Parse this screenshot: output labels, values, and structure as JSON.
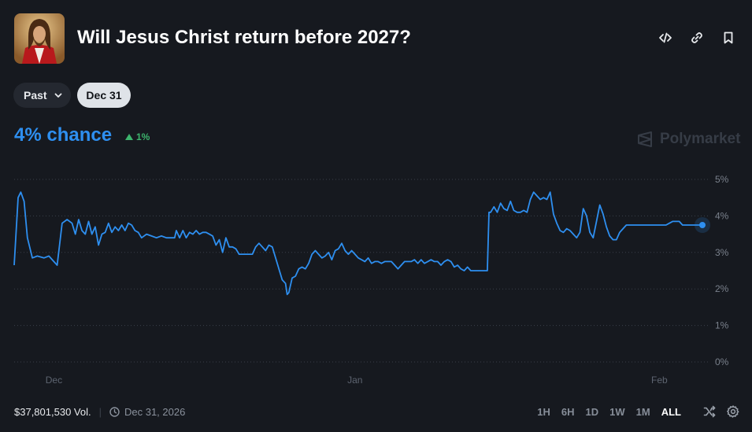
{
  "header": {
    "title": "Will Jesus Christ return before 2027?",
    "avatar_icon": "jesus-portrait-image"
  },
  "toolbar": {
    "icons": [
      "embed-code-icon",
      "link-icon",
      "bookmark-icon"
    ]
  },
  "filters": {
    "past_label": "Past",
    "date_label": "Dec 31"
  },
  "summary": {
    "chance": "4% chance",
    "delta": "1%",
    "delta_direction": "up"
  },
  "brand": {
    "name": "Polymarket"
  },
  "chart_data": {
    "type": "line",
    "title": "",
    "xlabel": "",
    "ylabel": "",
    "ylim": [
      0,
      5
    ],
    "y_ticks": [
      "5%",
      "4%",
      "3%",
      "2%",
      "1%",
      "0%"
    ],
    "x_ticks": [
      "Dec",
      "Jan",
      "Feb"
    ],
    "grid": true,
    "series": [
      {
        "color": "#2e8ff0",
        "points": [
          [
            0,
            2.65
          ],
          [
            1.2,
            4.5
          ],
          [
            2,
            4.65
          ],
          [
            3,
            4.4
          ],
          [
            4,
            3.4
          ],
          [
            5.5,
            2.85
          ],
          [
            7,
            2.9
          ],
          [
            9,
            2.85
          ],
          [
            10.5,
            2.9
          ],
          [
            12,
            2.75
          ],
          [
            13,
            2.65
          ],
          [
            14.5,
            3.8
          ],
          [
            16,
            3.9
          ],
          [
            17.5,
            3.8
          ],
          [
            18.5,
            3.5
          ],
          [
            19.5,
            3.9
          ],
          [
            20.5,
            3.6
          ],
          [
            21.5,
            3.5
          ],
          [
            22.5,
            3.85
          ],
          [
            23.5,
            3.5
          ],
          [
            24.5,
            3.7
          ],
          [
            25.5,
            3.2
          ],
          [
            26.5,
            3.5
          ],
          [
            27.5,
            3.55
          ],
          [
            28.5,
            3.8
          ],
          [
            29.5,
            3.55
          ],
          [
            30.5,
            3.7
          ],
          [
            31.5,
            3.6
          ],
          [
            32.5,
            3.75
          ],
          [
            33.5,
            3.6
          ],
          [
            34.5,
            3.8
          ],
          [
            35.5,
            3.75
          ],
          [
            36.5,
            3.6
          ],
          [
            37.5,
            3.55
          ],
          [
            38.5,
            3.4
          ],
          [
            40,
            3.5
          ],
          [
            41.5,
            3.45
          ],
          [
            43,
            3.4
          ],
          [
            44.5,
            3.45
          ],
          [
            46,
            3.4
          ],
          [
            47.5,
            3.4
          ],
          [
            48.5,
            3.4
          ],
          [
            49,
            3.6
          ],
          [
            50,
            3.4
          ],
          [
            51,
            3.6
          ],
          [
            52,
            3.4
          ],
          [
            53,
            3.55
          ],
          [
            54,
            3.5
          ],
          [
            55,
            3.6
          ],
          [
            56,
            3.5
          ],
          [
            57,
            3.55
          ],
          [
            58,
            3.55
          ],
          [
            59,
            3.5
          ],
          [
            60,
            3.45
          ],
          [
            61,
            3.2
          ],
          [
            62,
            3.35
          ],
          [
            63,
            3.0
          ],
          [
            64,
            3.4
          ],
          [
            65,
            3.15
          ],
          [
            66,
            3.15
          ],
          [
            67,
            3.1
          ],
          [
            68,
            2.95
          ],
          [
            69,
            2.95
          ],
          [
            70.5,
            2.95
          ],
          [
            72,
            2.95
          ],
          [
            73,
            3.15
          ],
          [
            74,
            3.25
          ],
          [
            75,
            3.15
          ],
          [
            76,
            3.05
          ],
          [
            77,
            3.2
          ],
          [
            78,
            3.15
          ],
          [
            79,
            2.85
          ],
          [
            80,
            2.55
          ],
          [
            81,
            2.25
          ],
          [
            82,
            2.15
          ],
          [
            82.5,
            1.85
          ],
          [
            83,
            1.9
          ],
          [
            84,
            2.3
          ],
          [
            85,
            2.35
          ],
          [
            86,
            2.55
          ],
          [
            87,
            2.6
          ],
          [
            88,
            2.55
          ],
          [
            89,
            2.7
          ],
          [
            90,
            2.95
          ],
          [
            91,
            3.05
          ],
          [
            92,
            2.95
          ],
          [
            93,
            2.85
          ],
          [
            94,
            2.9
          ],
          [
            95,
            3.0
          ],
          [
            96,
            2.8
          ],
          [
            97,
            3.05
          ],
          [
            98,
            3.1
          ],
          [
            99,
            3.25
          ],
          [
            100,
            3.05
          ],
          [
            101,
            2.95
          ],
          [
            102,
            3.05
          ],
          [
            103,
            2.95
          ],
          [
            104,
            2.85
          ],
          [
            105,
            2.8
          ],
          [
            106,
            2.75
          ],
          [
            107,
            2.85
          ],
          [
            108,
            2.7
          ],
          [
            109,
            2.75
          ],
          [
            110,
            2.75
          ],
          [
            111,
            2.7
          ],
          [
            112,
            2.75
          ],
          [
            113,
            2.75
          ],
          [
            114,
            2.75
          ],
          [
            115,
            2.65
          ],
          [
            116,
            2.55
          ],
          [
            117,
            2.65
          ],
          [
            118,
            2.75
          ],
          [
            119,
            2.75
          ],
          [
            120,
            2.75
          ],
          [
            121,
            2.8
          ],
          [
            122,
            2.7
          ],
          [
            123,
            2.8
          ],
          [
            124,
            2.7
          ],
          [
            125,
            2.75
          ],
          [
            126,
            2.8
          ],
          [
            127,
            2.75
          ],
          [
            128,
            2.75
          ],
          [
            129,
            2.65
          ],
          [
            130,
            2.75
          ],
          [
            131,
            2.8
          ],
          [
            132,
            2.75
          ],
          [
            133,
            2.6
          ],
          [
            134,
            2.65
          ],
          [
            135,
            2.55
          ],
          [
            136,
            2.5
          ],
          [
            137,
            2.6
          ],
          [
            138,
            2.5
          ],
          [
            139,
            2.5
          ],
          [
            140,
            2.5
          ],
          [
            141,
            2.5
          ],
          [
            142,
            2.5
          ],
          [
            143,
            2.5
          ],
          [
            143.5,
            4.1
          ],
          [
            144,
            4.1
          ],
          [
            145,
            4.25
          ],
          [
            146,
            4.1
          ],
          [
            147,
            4.35
          ],
          [
            148,
            4.2
          ],
          [
            149,
            4.15
          ],
          [
            150,
            4.4
          ],
          [
            151,
            4.15
          ],
          [
            152,
            4.1
          ],
          [
            153,
            4.1
          ],
          [
            154,
            4.15
          ],
          [
            155,
            4.1
          ],
          [
            156,
            4.45
          ],
          [
            157,
            4.65
          ],
          [
            158,
            4.55
          ],
          [
            159,
            4.45
          ],
          [
            160,
            4.5
          ],
          [
            161,
            4.45
          ],
          [
            162,
            4.65
          ],
          [
            163,
            4.05
          ],
          [
            164,
            3.8
          ],
          [
            165,
            3.6
          ],
          [
            166,
            3.55
          ],
          [
            167,
            3.65
          ],
          [
            168,
            3.6
          ],
          [
            169,
            3.5
          ],
          [
            170,
            3.4
          ],
          [
            171,
            3.55
          ],
          [
            172,
            4.2
          ],
          [
            173,
            4.0
          ],
          [
            174,
            3.55
          ],
          [
            175,
            3.4
          ],
          [
            176,
            3.85
          ],
          [
            177,
            4.3
          ],
          [
            178,
            4.05
          ],
          [
            179,
            3.7
          ],
          [
            180,
            3.45
          ],
          [
            181,
            3.35
          ],
          [
            182,
            3.35
          ],
          [
            183,
            3.55
          ],
          [
            184,
            3.65
          ],
          [
            185,
            3.75
          ],
          [
            187,
            3.75
          ],
          [
            189,
            3.75
          ],
          [
            191,
            3.75
          ],
          [
            193,
            3.75
          ],
          [
            195,
            3.75
          ],
          [
            197,
            3.75
          ],
          [
            198,
            3.8
          ],
          [
            199,
            3.85
          ],
          [
            201,
            3.85
          ],
          [
            202,
            3.75
          ],
          [
            204,
            3.75
          ],
          [
            206,
            3.75
          ],
          [
            208,
            3.75
          ]
        ]
      }
    ]
  },
  "footer": {
    "volume": "$37,801,530 Vol.",
    "end_date": "Dec 31, 2026",
    "ranges": [
      "1H",
      "6H",
      "1D",
      "1W",
      "1M",
      "ALL"
    ],
    "active_range": "ALL",
    "icons": [
      "shuffle-icon",
      "settings-gear-icon"
    ]
  }
}
